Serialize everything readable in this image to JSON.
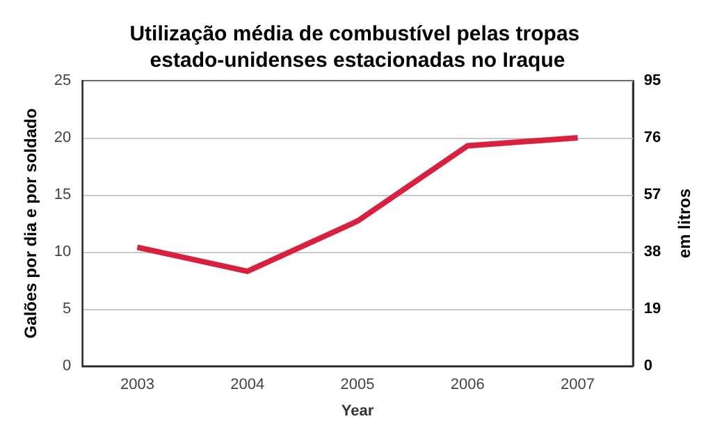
{
  "chart_data": {
    "type": "line",
    "title": "Utilização média de combustível pelas tropas estado-unidenses estacionadas no Iraque",
    "xlabel": "Year",
    "ylabel": "Galões por dia e por soldado",
    "y2label": "em litros",
    "categories": [
      "2003",
      "2004",
      "2005",
      "2006",
      "2007"
    ],
    "series": [
      {
        "color": "#d8213f",
        "values": [
          10.4,
          8.3,
          12.7,
          19.3,
          20.0
        ]
      }
    ],
    "ylim": [
      0,
      25
    ],
    "yticks": [
      0,
      5,
      10,
      15,
      20,
      25
    ],
    "y2lim": [
      0,
      95
    ],
    "y2ticks": [
      0,
      19,
      38,
      57,
      76,
      95
    ],
    "grid": "y",
    "marker": "none",
    "line_style": "solid"
  }
}
